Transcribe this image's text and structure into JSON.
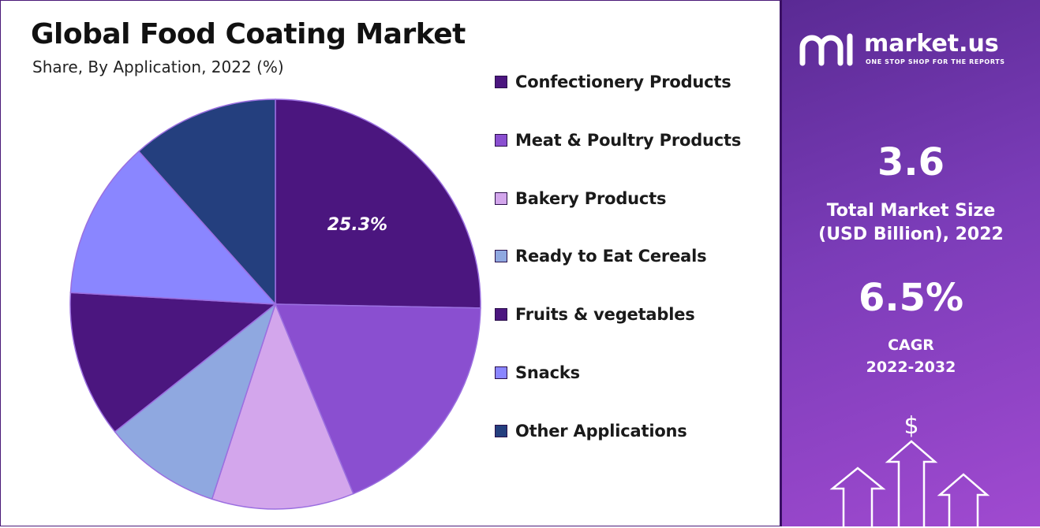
{
  "title": "Global Food Coating Market",
  "subtitle": "Share, By Application, 2022 (%)",
  "chart_data": {
    "type": "pie",
    "categories": [
      "Confectionery Products",
      "Meat & Poultry Products",
      "Bakery Products",
      "Ready to Eat Cereals",
      "Fruits & vegetables",
      "Snacks",
      "Other Applications"
    ],
    "values": [
      25.3,
      18.5,
      11.2,
      9.3,
      11.6,
      12.5,
      11.6
    ],
    "colors": [
      "#4b167f",
      "#8a4fd0",
      "#d3a6ec",
      "#8fa8e0",
      "#4b167f",
      "#8a86ff",
      "#243f7e"
    ],
    "data_labels": [
      "25.3%",
      "",
      "",
      "",
      "",
      "",
      ""
    ],
    "legend_position": "right"
  },
  "panel": {
    "logo_text": "market.us",
    "logo_tagline": "ONE STOP SHOP FOR THE REPORTS",
    "market_size_value": "3.6",
    "market_size_label_line1": "Total Market Size",
    "market_size_label_line2": "(USD Billion), 2022",
    "cagr_value": "6.5%",
    "cagr_label_line1": "CAGR",
    "cagr_label_line2": "2022-2032",
    "currency_symbol": "$",
    "background_colors": [
      "#5a2a94",
      "#a04ad0"
    ]
  }
}
